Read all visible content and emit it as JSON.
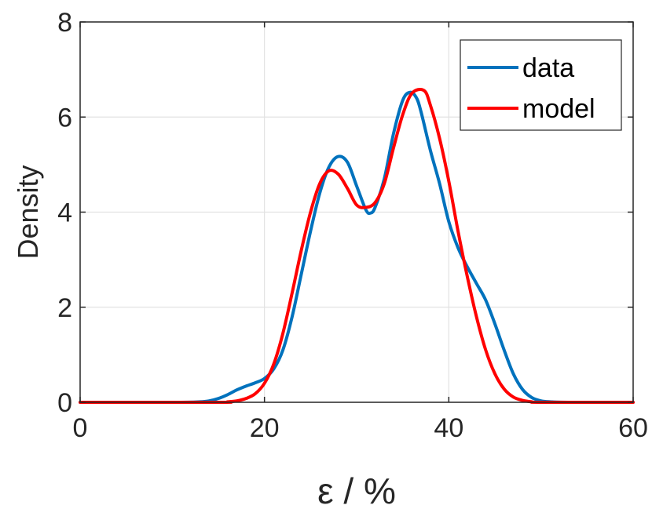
{
  "chart_data": {
    "type": "line",
    "xlabel": "ε / %",
    "ylabel": "Density",
    "xlim": [
      0,
      60
    ],
    "ylim": [
      0,
      8
    ],
    "xticks": [
      0,
      20,
      40,
      60
    ],
    "yticks": [
      0,
      2,
      4,
      6,
      8
    ],
    "grid": true,
    "legend_position": "top-right",
    "series": [
      {
        "name": "data",
        "color": "#0072BD",
        "points": [
          [
            0,
            0
          ],
          [
            10,
            0
          ],
          [
            13,
            0.01
          ],
          [
            14,
            0.03
          ],
          [
            15,
            0.08
          ],
          [
            16,
            0.16
          ],
          [
            17,
            0.26
          ],
          [
            18,
            0.34
          ],
          [
            19,
            0.41
          ],
          [
            20,
            0.5
          ],
          [
            21,
            0.7
          ],
          [
            22,
            1.1
          ],
          [
            23,
            1.8
          ],
          [
            24,
            2.7
          ],
          [
            25,
            3.6
          ],
          [
            26,
            4.4
          ],
          [
            27,
            4.95
          ],
          [
            28,
            5.17
          ],
          [
            29,
            5.05
          ],
          [
            30,
            4.55
          ],
          [
            31,
            4.05
          ],
          [
            31.5,
            3.98
          ],
          [
            32,
            4.1
          ],
          [
            33,
            4.7
          ],
          [
            34,
            5.65
          ],
          [
            35,
            6.35
          ],
          [
            35.8,
            6.52
          ],
          [
            36.5,
            6.4
          ],
          [
            37,
            6.1
          ],
          [
            38,
            5.3
          ],
          [
            39,
            4.6
          ],
          [
            40,
            3.8
          ],
          [
            41,
            3.25
          ],
          [
            42,
            2.85
          ],
          [
            43,
            2.5
          ],
          [
            44,
            2.15
          ],
          [
            45,
            1.65
          ],
          [
            46,
            1.1
          ],
          [
            47,
            0.6
          ],
          [
            48,
            0.27
          ],
          [
            49,
            0.1
          ],
          [
            50,
            0.03
          ],
          [
            51,
            0.01
          ],
          [
            53,
            0
          ],
          [
            60,
            0
          ]
        ]
      },
      {
        "name": "model",
        "color": "#FF0000",
        "points": [
          [
            0,
            0
          ],
          [
            15,
            0
          ],
          [
            16,
            0.01
          ],
          [
            17,
            0.03
          ],
          [
            18,
            0.08
          ],
          [
            19,
            0.18
          ],
          [
            20,
            0.4
          ],
          [
            21,
            0.8
          ],
          [
            22,
            1.45
          ],
          [
            23,
            2.3
          ],
          [
            24,
            3.2
          ],
          [
            25,
            4.0
          ],
          [
            26,
            4.6
          ],
          [
            27,
            4.87
          ],
          [
            28,
            4.8
          ],
          [
            29,
            4.5
          ],
          [
            30,
            4.15
          ],
          [
            31,
            4.1
          ],
          [
            32,
            4.2
          ],
          [
            33,
            4.6
          ],
          [
            34,
            5.35
          ],
          [
            35,
            6.05
          ],
          [
            36,
            6.5
          ],
          [
            37.3,
            6.56
          ],
          [
            38,
            6.25
          ],
          [
            39,
            5.55
          ],
          [
            40,
            4.65
          ],
          [
            41,
            3.6
          ],
          [
            42,
            2.65
          ],
          [
            43,
            1.8
          ],
          [
            44,
            1.1
          ],
          [
            45,
            0.6
          ],
          [
            46,
            0.28
          ],
          [
            47,
            0.11
          ],
          [
            48,
            0.04
          ],
          [
            49,
            0.01
          ],
          [
            50,
            0
          ],
          [
            60,
            0
          ]
        ]
      }
    ]
  }
}
